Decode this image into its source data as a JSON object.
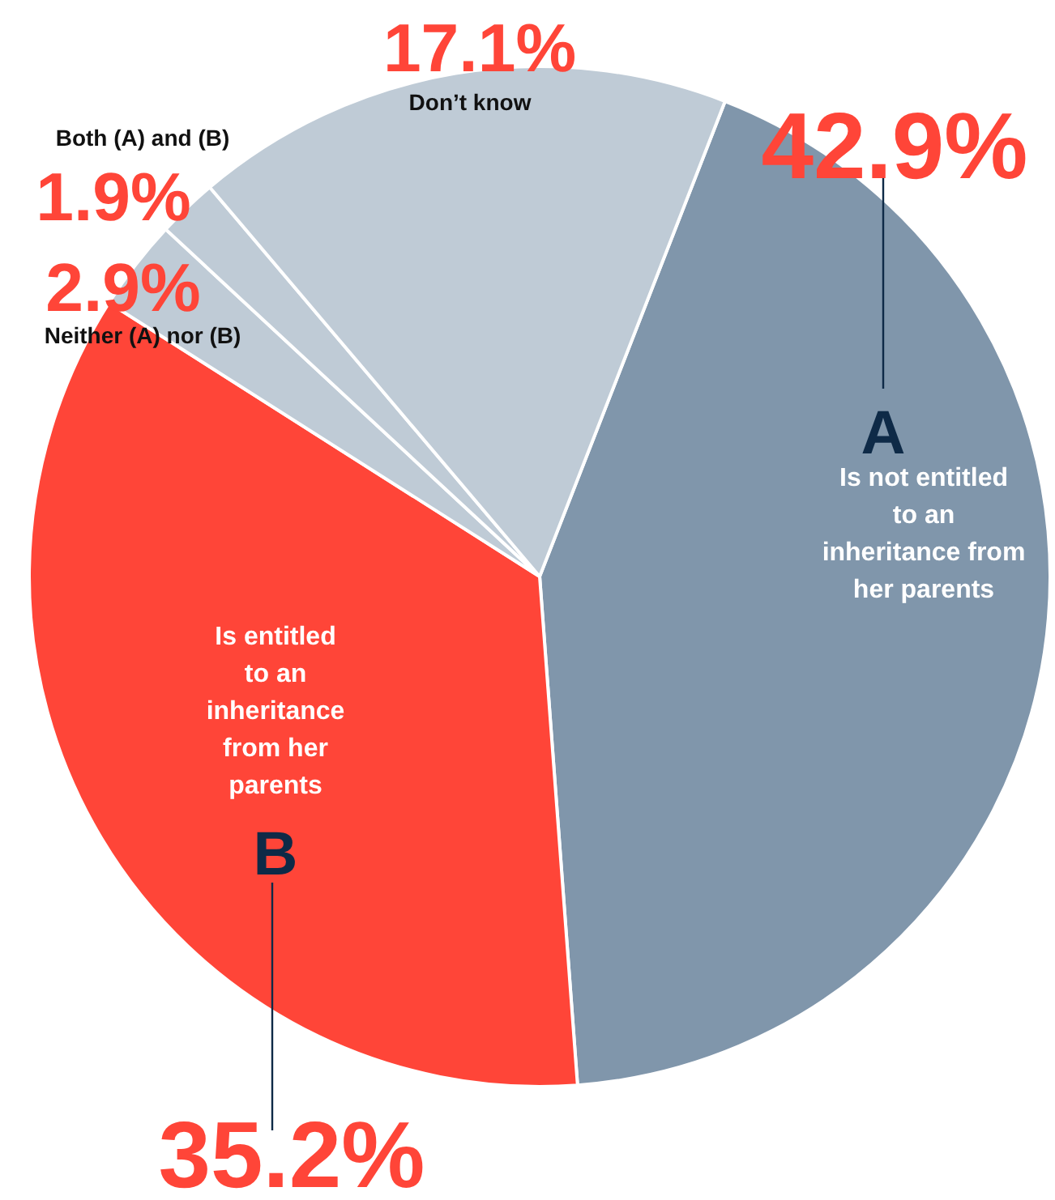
{
  "chart_data": {
    "type": "pie",
    "categories": [
      "Is not entitled to an inheritance from her parents",
      "Is entitled to an inheritance from her parents",
      "Neither (A) nor (B)",
      "Both (A) and (B)",
      "Don’t know"
    ],
    "values": [
      42.9,
      35.2,
      2.9,
      1.9,
      17.1
    ],
    "value_labels": [
      "42.9%",
      "35.2%",
      "2.9%",
      "1.9%",
      "17.1%"
    ],
    "colors": [
      "#8096ab",
      "#ff4538",
      "#bfcbd6",
      "#bfcbd6",
      "#bfcbd6"
    ],
    "annotations": [
      "A",
      "B"
    ]
  }
}
